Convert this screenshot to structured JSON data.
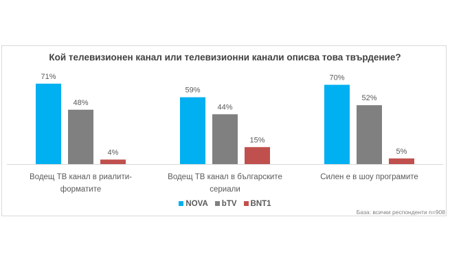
{
  "chart_data": {
    "type": "bar",
    "title": "Кой телевизионен канал или телевизионни канали описва това твърдение?",
    "categories": [
      [
        "Водещ ТВ канал в риалити-",
        "форматите"
      ],
      [
        "Водещ ТВ канал в българските",
        "сериали"
      ],
      [
        "Силен е в шоу програмите"
      ]
    ],
    "series": [
      {
        "name": "NOVA",
        "color": "#00b0f0",
        "values": [
          71,
          59,
          70
        ]
      },
      {
        "name": "bTV",
        "color": "#808080",
        "values": [
          48,
          44,
          52
        ]
      },
      {
        "name": "BNT1",
        "color": "#c0504d",
        "values": [
          4,
          15,
          5
        ]
      }
    ],
    "value_suffix": "%",
    "ylim": [
      0,
      75
    ],
    "grid": false,
    "legend_position": "bottom",
    "note": "База: всички респонденти n=908"
  }
}
